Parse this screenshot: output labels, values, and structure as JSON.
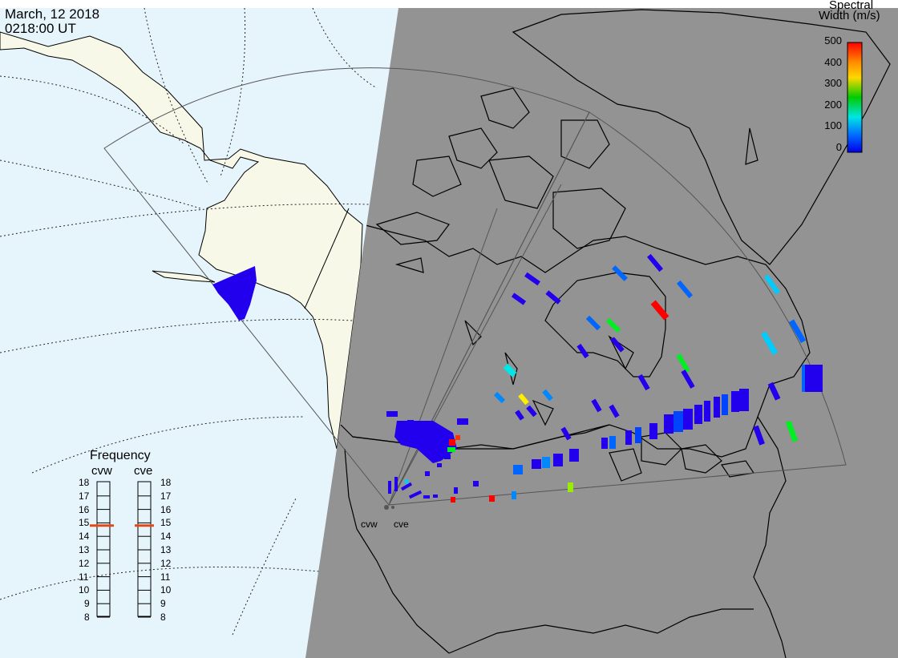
{
  "header": {
    "date": "March, 12 2018",
    "time": "0218:00 UT"
  },
  "colorbar": {
    "title_line1": "Spectral",
    "title_line2": "Width (m/s)",
    "ticks": [
      "500",
      "400",
      "300",
      "200",
      "100",
      "0"
    ],
    "min": 0,
    "max": 500,
    "gradient": [
      "#ff0000",
      "#ff8c00",
      "#ffd700",
      "#00cc00",
      "#00e5e5",
      "#0066ff",
      "#0000e6"
    ]
  },
  "frequency_panel": {
    "title": "Frequency",
    "columns": [
      {
        "label": "cvw",
        "value_mhz": 14.8
      },
      {
        "label": "cve",
        "value_mhz": 14.8
      }
    ],
    "ticks": [
      "18",
      "17",
      "16",
      "15",
      "14",
      "13",
      "12",
      "11",
      "10",
      "9",
      "8"
    ],
    "min": 8,
    "max": 18,
    "marker_color": "#e04a1a"
  },
  "stations": [
    {
      "label": "cvw"
    },
    {
      "label": "cve"
    }
  ],
  "colors": {
    "night": "#939393",
    "day_ocean": "#e6f4fc",
    "day_land": "#f8f8e8",
    "echo_dominant": "#2200ee"
  }
}
